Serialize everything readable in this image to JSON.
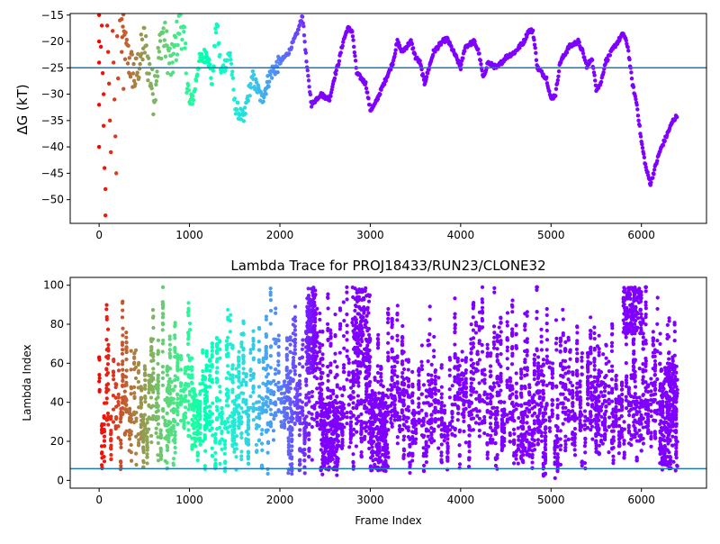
{
  "chart_data": [
    {
      "type": "scatter",
      "title": "",
      "xlabel": "",
      "ylabel": "ΔG (kT)",
      "xlim": [
        -320,
        6720
      ],
      "ylim": [
        -54.5,
        -14.7
      ],
      "xticks": [
        0,
        1000,
        2000,
        3000,
        4000,
        5000,
        6000
      ],
      "yticks": [
        -50,
        -45,
        -40,
        -35,
        -30,
        -25,
        -20,
        -15
      ],
      "reference_line_y": -25,
      "grid": false,
      "colormap": "rainbow (frame index: red at start → violet at end)",
      "point_color": "#8000ff",
      "reference_color": "#1f77b4",
      "early_points": [
        [
          0,
          -15
        ],
        [
          0,
          -20
        ],
        [
          0,
          -24
        ],
        [
          0,
          -32
        ],
        [
          0,
          -40
        ],
        [
          20,
          -21
        ],
        [
          30,
          -17
        ],
        [
          40,
          -26
        ],
        [
          50,
          -30
        ],
        [
          50,
          -36
        ],
        [
          60,
          -44
        ],
        [
          70,
          -48
        ],
        [
          70,
          -53
        ],
        [
          90,
          -17
        ],
        [
          100,
          -22
        ],
        [
          110,
          -28
        ],
        [
          120,
          -35
        ],
        [
          130,
          -41
        ],
        [
          150,
          -18
        ],
        [
          160,
          -24
        ],
        [
          170,
          -31
        ],
        [
          180,
          -38
        ],
        [
          190,
          -45
        ],
        [
          200,
          -19
        ],
        [
          210,
          -27
        ],
        [
          230,
          -16
        ],
        [
          250,
          -22
        ],
        [
          270,
          -29
        ]
      ],
      "trace": [
        [
          250,
          -17
        ],
        [
          300,
          -22
        ],
        [
          400,
          -27
        ],
        [
          500,
          -20
        ],
        [
          600,
          -30
        ],
        [
          700,
          -18
        ],
        [
          800,
          -25
        ],
        [
          900,
          -16
        ],
        [
          950,
          -22
        ],
        [
          1000,
          -32
        ],
        [
          1050,
          -30
        ],
        [
          1100,
          -24
        ],
        [
          1200,
          -22
        ],
        [
          1250,
          -28
        ],
        [
          1300,
          -16
        ],
        [
          1350,
          -26
        ],
        [
          1450,
          -22
        ],
        [
          1500,
          -32
        ],
        [
          1600,
          -35
        ],
        [
          1650,
          -30
        ],
        [
          1700,
          -27
        ],
        [
          1800,
          -31
        ],
        [
          1900,
          -26
        ],
        [
          2000,
          -24
        ],
        [
          2100,
          -22
        ],
        [
          2200,
          -18
        ],
        [
          2250,
          -15
        ],
        [
          2300,
          -25
        ],
        [
          2350,
          -32
        ],
        [
          2450,
          -30
        ],
        [
          2550,
          -31
        ],
        [
          2600,
          -27
        ],
        [
          2650,
          -24
        ],
        [
          2700,
          -20
        ],
        [
          2750,
          -17.5
        ],
        [
          2800,
          -18
        ],
        [
          2850,
          -26
        ],
        [
          2950,
          -28
        ],
        [
          3000,
          -33
        ],
        [
          3050,
          -32
        ],
        [
          3150,
          -28
        ],
        [
          3250,
          -24
        ],
        [
          3300,
          -20
        ],
        [
          3350,
          -22
        ],
        [
          3400,
          -21
        ],
        [
          3450,
          -20
        ],
        [
          3500,
          -23
        ],
        [
          3550,
          -24
        ],
        [
          3600,
          -28
        ],
        [
          3700,
          -22
        ],
        [
          3800,
          -20
        ],
        [
          3850,
          -19.5
        ],
        [
          3950,
          -23
        ],
        [
          4000,
          -25
        ],
        [
          4050,
          -21
        ],
        [
          4150,
          -20
        ],
        [
          4200,
          -22
        ],
        [
          4250,
          -27
        ],
        [
          4300,
          -24
        ],
        [
          4400,
          -25
        ],
        [
          4500,
          -23
        ],
        [
          4600,
          -22
        ],
        [
          4700,
          -20
        ],
        [
          4750,
          -18
        ],
        [
          4800,
          -18
        ],
        [
          4850,
          -25
        ],
        [
          4950,
          -27
        ],
        [
          5000,
          -31
        ],
        [
          5050,
          -30
        ],
        [
          5100,
          -24
        ],
        [
          5200,
          -21
        ],
        [
          5300,
          -20
        ],
        [
          5350,
          -22
        ],
        [
          5400,
          -25
        ],
        [
          5450,
          -23
        ],
        [
          5500,
          -29
        ],
        [
          5550,
          -28
        ],
        [
          5600,
          -24
        ],
        [
          5700,
          -21
        ],
        [
          5800,
          -18.5
        ],
        [
          5850,
          -21
        ],
        [
          5900,
          -28
        ],
        [
          5950,
          -32
        ],
        [
          6000,
          -39
        ],
        [
          6050,
          -44
        ],
        [
          6100,
          -47
        ],
        [
          6150,
          -44
        ],
        [
          6200,
          -41
        ],
        [
          6300,
          -37
        ],
        [
          6350,
          -35
        ],
        [
          6400,
          -34
        ]
      ]
    },
    {
      "type": "scatter",
      "title": "Lambda Trace for PROJ18433/RUN23/CLONE32",
      "xlabel": "Frame Index",
      "ylabel": "Lambda Index",
      "xlim": [
        -320,
        6720
      ],
      "ylim": [
        -4,
        104
      ],
      "xticks": [
        0,
        1000,
        2000,
        3000,
        4000,
        5000,
        6000
      ],
      "yticks": [
        0,
        20,
        40,
        60,
        80,
        100
      ],
      "reference_line_y": 6,
      "grid": false,
      "colormap": "rainbow (frame index: red at start → violet at end)",
      "point_color": "#8000ff",
      "reference_color": "#1f77b4",
      "frame_range": [
        0,
        6400
      ],
      "lambda_range": [
        1,
        99
      ],
      "high_density_regions": [
        [
          2300,
          2400,
          55,
          99
        ],
        [
          2800,
          3000,
          50,
          99
        ],
        [
          5800,
          6000,
          75,
          99
        ]
      ],
      "low_density_regions": [
        [
          2450,
          2650,
          5,
          40
        ],
        [
          3000,
          3200,
          5,
          45
        ],
        [
          6200,
          6400,
          5,
          60
        ]
      ]
    }
  ]
}
